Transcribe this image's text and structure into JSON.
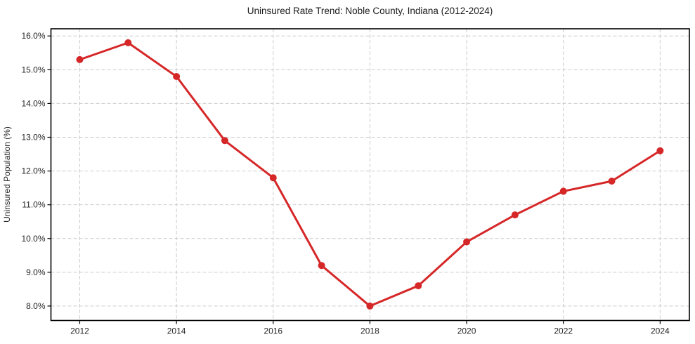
{
  "chart_data": {
    "type": "line",
    "title": "Uninsured Rate Trend: Noble County, Indiana (2012-2024)",
    "xlabel": "",
    "ylabel": "Uninsured Population (%)",
    "x": [
      2012,
      2013,
      2014,
      2015,
      2016,
      2017,
      2018,
      2019,
      2020,
      2021,
      2022,
      2023,
      2024
    ],
    "series": [
      {
        "name": "Uninsured rate",
        "values": [
          15.3,
          15.8,
          14.8,
          12.9,
          11.8,
          9.2,
          8.0,
          8.6,
          9.9,
          10.7,
          11.4,
          11.7,
          12.6
        ]
      }
    ],
    "x_ticks": [
      2012,
      2014,
      2016,
      2018,
      2020,
      2022,
      2024
    ],
    "x_tick_labels": [
      "2012",
      "2014",
      "2016",
      "2018",
      "2020",
      "2022",
      "2024"
    ],
    "y_ticks": [
      8,
      9,
      10,
      11,
      12,
      13,
      14,
      15,
      16
    ],
    "y_tick_labels": [
      "8.0%",
      "9.0%",
      "10.0%",
      "11.0%",
      "12.0%",
      "13.0%",
      "14.0%",
      "15.0%",
      "16.0%"
    ],
    "xlim": [
      2011.405,
      2024.605
    ],
    "ylim": [
      7.572,
      16.213
    ],
    "grid": true,
    "legend": false,
    "marker": "circle",
    "colors": {
      "line": "#d62728",
      "marker": "#d62728",
      "grid": "#cccccc",
      "spine": "#000000",
      "text": "#262626",
      "title_text": "#1a1a1a",
      "background": "#ffffff"
    }
  }
}
